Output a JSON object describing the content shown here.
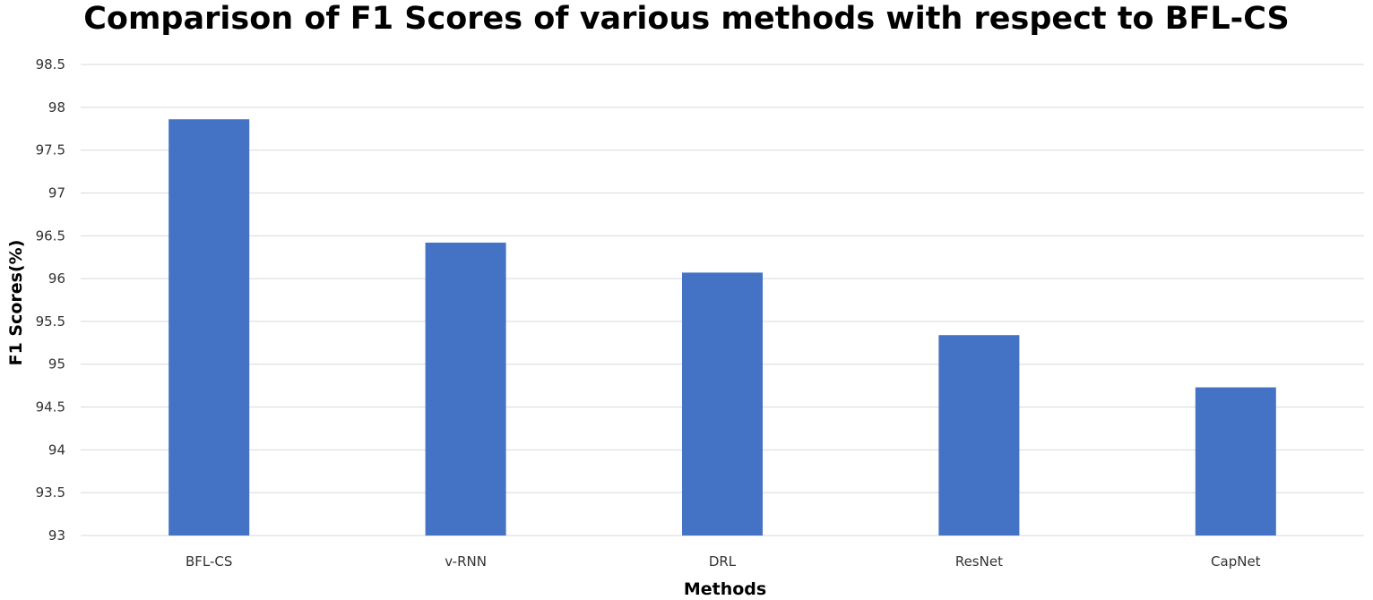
{
  "chart_data": {
    "type": "bar",
    "title": "Comparison of F1 Scores of various methods with respect to BFL-CS",
    "xlabel": "Methods",
    "ylabel": "F1 Scores(%)",
    "categories": [
      "BFL-CS",
      "v-RNN",
      "DRL",
      "ResNet",
      "CapNet"
    ],
    "values": [
      97.86,
      96.42,
      96.07,
      95.34,
      94.73
    ],
    "ylim": [
      93,
      98.5
    ],
    "ytick_step": 0.5,
    "yticks": [
      "93",
      "93.5",
      "94",
      "94.5",
      "95",
      "95.5",
      "96",
      "96.5",
      "97",
      "97.5",
      "98",
      "98.5"
    ],
    "grid": true,
    "legend": "none",
    "bar_color": "#4472c4",
    "grid_color": "#d9d9d9"
  }
}
